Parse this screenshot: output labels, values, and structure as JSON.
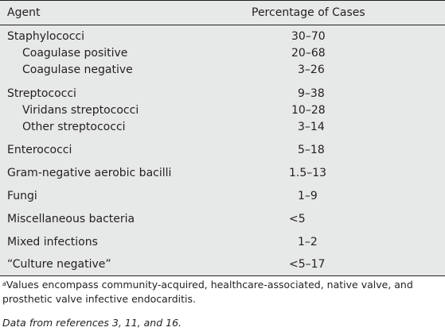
{
  "table": {
    "headers": {
      "agent": "Agent",
      "percentage": "Percentage of Cases"
    },
    "rows": [
      {
        "agent": "Staphylococci",
        "value": "30–70"
      },
      {
        "agent": "Coagulase positive",
        "value": "20–68"
      },
      {
        "agent": "Coagulase negative",
        "value": "3–26"
      },
      {
        "agent": "Streptococci",
        "value": "9–38"
      },
      {
        "agent": "Viridans streptococci",
        "value": "10–28"
      },
      {
        "agent": "Other streptococci",
        "value": "3–14"
      },
      {
        "agent": "Enterococci",
        "value": "5–18"
      },
      {
        "agent": "Gram-negative aerobic bacilli",
        "value": "1.5–13"
      },
      {
        "agent": "Fungi",
        "value": "1–9"
      },
      {
        "agent": "Miscellaneous bacteria",
        "value": "<5"
      },
      {
        "agent": "Mixed infections",
        "value": "1–2"
      },
      {
        "agent": "“Culture negative”",
        "value": "<5–17"
      }
    ]
  },
  "footnote": {
    "marker": "a",
    "text": "Values encompass community-acquired, healthcare-associated, native valve, and prosthetic valve infective endocarditis."
  },
  "source": "Data from references 3, 11, and 16."
}
